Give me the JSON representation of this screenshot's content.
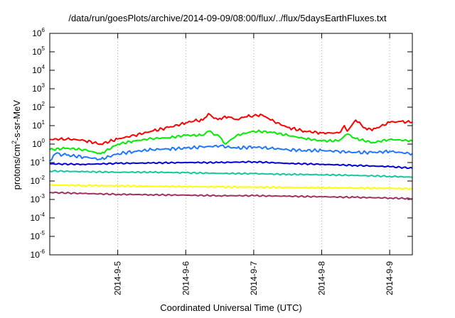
{
  "chart_data": {
    "type": "line",
    "title": "/data/run/goesPlots/archive/2014-09-09/08:00/flux/../flux/5daysEarthFluxes.txt",
    "xlabel": "Coordinated Universal Time (UTC)",
    "ylabel": {
      "prefix": "protons/cm",
      "sup": "2",
      "suffix": "-s-sr-MeV"
    },
    "y_scale": "log",
    "ylim": [
      1e-06,
      1000000.0
    ],
    "y_ticks": [
      {
        "base": "10",
        "exp": "-6"
      },
      {
        "base": "10",
        "exp": "-5"
      },
      {
        "base": "10",
        "exp": "-4"
      },
      {
        "base": "10",
        "exp": "-3"
      },
      {
        "base": "10",
        "exp": "-2"
      },
      {
        "base": "10",
        "exp": "-1"
      },
      {
        "base": "10",
        "exp": "0"
      },
      {
        "base": "10",
        "exp": "1"
      },
      {
        "base": "10",
        "exp": "2"
      },
      {
        "base": "10",
        "exp": "3"
      },
      {
        "base": "10",
        "exp": "4"
      },
      {
        "base": "10",
        "exp": "5"
      },
      {
        "base": "10",
        "exp": "6"
      }
    ],
    "xlim": [
      "2014-09-04 00:00",
      "2014-09-09 08:00"
    ],
    "x_ticks": [
      "2014-9-5",
      "2014-9-6",
      "2014-9-7",
      "2014-9-8",
      "2014-9-9"
    ],
    "grid": true,
    "series": [
      {
        "color": "#ff0000",
        "x": [
          "2014-09-04 00:00",
          "2014-09-04 06:00",
          "2014-09-04 12:00",
          "2014-09-04 18:00",
          "2014-09-05 00:00",
          "2014-09-05 06:00",
          "2014-09-05 12:00",
          "2014-09-05 18:00",
          "2014-09-06 00:00",
          "2014-09-06 03:00",
          "2014-09-06 06:00",
          "2014-09-06 08:00",
          "2014-09-06 10:00",
          "2014-09-06 12:00",
          "2014-09-06 15:00",
          "2014-09-06 18:00",
          "2014-09-06 21:00",
          "2014-09-07 00:00",
          "2014-09-07 03:00",
          "2014-09-07 06:00",
          "2014-09-07 12:00",
          "2014-09-07 18:00",
          "2014-09-08 00:00",
          "2014-09-08 06:00",
          "2014-09-08 08:00",
          "2014-09-08 09:00",
          "2014-09-08 12:00",
          "2014-09-08 16:00",
          "2014-09-08 19:00",
          "2014-09-09 00:00",
          "2014-09-09 04:00",
          "2014-09-09 08:00"
        ],
        "y": [
          1.8,
          1.9,
          1.6,
          1.0,
          1.9,
          3.0,
          5.0,
          8.0,
          14,
          18,
          20,
          45,
          25,
          25,
          30,
          22,
          30,
          35,
          38,
          20,
          8,
          5,
          4,
          4,
          10,
          5,
          20,
          6,
          7,
          15,
          17,
          15
        ]
      },
      {
        "color": "#00ee00",
        "x": [
          "2014-09-04 00:00",
          "2014-09-04 06:00",
          "2014-09-04 12:00",
          "2014-09-04 18:00",
          "2014-09-05 00:00",
          "2014-09-05 06:00",
          "2014-09-05 12:00",
          "2014-09-05 18:00",
          "2014-09-06 00:00",
          "2014-09-06 06:00",
          "2014-09-06 08:00",
          "2014-09-06 12:00",
          "2014-09-06 14:00",
          "2014-09-06 18:00",
          "2014-09-07 00:00",
          "2014-09-07 06:00",
          "2014-09-07 12:00",
          "2014-09-07 18:00",
          "2014-09-08 00:00",
          "2014-09-08 06:00",
          "2014-09-08 09:00",
          "2014-09-08 12:00",
          "2014-09-08 18:00",
          "2014-09-09 00:00",
          "2014-09-09 08:00"
        ],
        "y": [
          0.5,
          0.6,
          0.5,
          0.3,
          1.0,
          1.5,
          2.0,
          2.2,
          3.0,
          3.0,
          5.0,
          2.5,
          1.0,
          3.0,
          5.0,
          4.5,
          3.0,
          2.0,
          1.5,
          1.5,
          3.5,
          2.0,
          1.2,
          1.8,
          1.5
        ]
      },
      {
        "color": "#1e78ff",
        "x": [
          "2014-09-04 00:00",
          "2014-09-04 02:00",
          "2014-09-04 06:00",
          "2014-09-04 12:00",
          "2014-09-04 18:00",
          "2014-09-05 00:00",
          "2014-09-05 06:00",
          "2014-09-05 12:00",
          "2014-09-05 18:00",
          "2014-09-06 00:00",
          "2014-09-06 06:00",
          "2014-09-06 12:00",
          "2014-09-06 18:00",
          "2014-09-07 00:00",
          "2014-09-07 06:00",
          "2014-09-07 12:00",
          "2014-09-07 18:00",
          "2014-09-08 00:00",
          "2014-09-08 06:00",
          "2014-09-08 12:00",
          "2014-09-08 18:00",
          "2014-09-09 00:00",
          "2014-09-09 08:00"
        ],
        "y": [
          0.12,
          0.3,
          0.25,
          0.2,
          0.15,
          0.3,
          0.4,
          0.5,
          0.55,
          0.6,
          0.7,
          0.8,
          0.6,
          0.7,
          0.6,
          0.5,
          0.45,
          0.45,
          0.4,
          0.35,
          0.35,
          0.4,
          0.3
        ]
      },
      {
        "color": "#0000dd",
        "x": [
          "2014-09-04 00:00",
          "2014-09-04 12:00",
          "2014-09-05 00:00",
          "2014-09-05 12:00",
          "2014-09-06 00:00",
          "2014-09-06 12:00",
          "2014-09-07 00:00",
          "2014-09-07 12:00",
          "2014-09-08 00:00",
          "2014-09-08 12:00",
          "2014-09-09 00:00",
          "2014-09-09 08:00"
        ],
        "y": [
          0.085,
          0.08,
          0.09,
          0.095,
          0.1,
          0.1,
          0.11,
          0.09,
          0.08,
          0.07,
          0.06,
          0.05
        ]
      },
      {
        "color": "#11c8a0",
        "x": [
          "2014-09-04 00:00",
          "2014-09-04 12:00",
          "2014-09-05 00:00",
          "2014-09-05 12:00",
          "2014-09-06 00:00",
          "2014-09-06 12:00",
          "2014-09-07 00:00",
          "2014-09-07 12:00",
          "2014-09-08 00:00",
          "2014-09-08 12:00",
          "2014-09-09 00:00",
          "2014-09-09 08:00"
        ],
        "y": [
          0.035,
          0.032,
          0.03,
          0.03,
          0.028,
          0.026,
          0.025,
          0.023,
          0.022,
          0.02,
          0.018,
          0.016
        ]
      },
      {
        "color": "#ffff00",
        "x": [
          "2014-09-04 00:00",
          "2014-09-04 12:00",
          "2014-09-05 00:00",
          "2014-09-05 12:00",
          "2014-09-06 00:00",
          "2014-09-06 12:00",
          "2014-09-07 00:00",
          "2014-09-07 12:00",
          "2014-09-08 00:00",
          "2014-09-08 12:00",
          "2014-09-09 00:00",
          "2014-09-09 08:00"
        ],
        "y": [
          0.006,
          0.0058,
          0.0055,
          0.0052,
          0.005,
          0.0048,
          0.0047,
          0.0045,
          0.0043,
          0.0042,
          0.004,
          0.0038
        ]
      },
      {
        "color": "#a03060",
        "x": [
          "2014-09-04 00:00",
          "2014-09-04 12:00",
          "2014-09-05 00:00",
          "2014-09-05 12:00",
          "2014-09-06 00:00",
          "2014-09-06 12:00",
          "2014-09-07 00:00",
          "2014-09-07 12:00",
          "2014-09-08 00:00",
          "2014-09-08 12:00",
          "2014-09-09 00:00",
          "2014-09-09 08:00"
        ],
        "y": [
          0.0024,
          0.0021,
          0.0019,
          0.0018,
          0.0017,
          0.0016,
          0.0016,
          0.0015,
          0.0014,
          0.0013,
          0.0012,
          0.0011
        ]
      }
    ]
  }
}
